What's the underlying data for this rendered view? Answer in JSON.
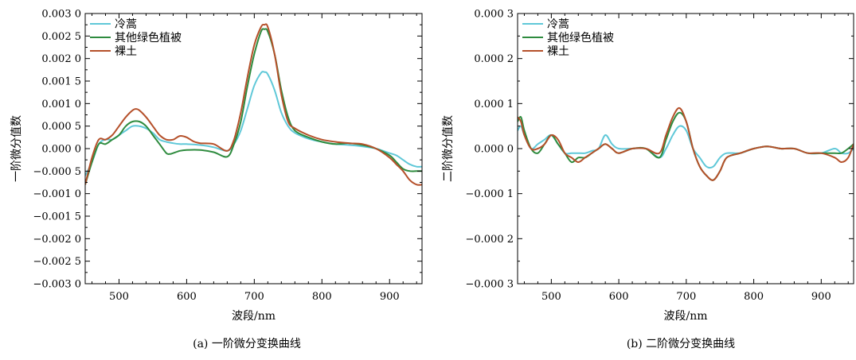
{
  "colors": {
    "cyan": "#5fc8d8",
    "green": "#2e8b3e",
    "red": "#b5502a"
  },
  "chart_data": [
    {
      "type": "line",
      "caption": "(a) 一阶微分变换曲线",
      "xlabel": "波段/nm",
      "ylabel": "一阶微分值数",
      "xlim": [
        450,
        948
      ],
      "ylim": [
        -0.003,
        0.003
      ],
      "xticks": [
        500,
        600,
        700,
        800,
        900
      ],
      "xtick_labels": [
        "500",
        "600",
        "700",
        "800",
        "900"
      ],
      "yticks": [
        -0.003,
        -0.0025,
        -0.002,
        -0.0015,
        -0.001,
        -0.0005,
        0,
        0.0005,
        0.001,
        0.0015,
        0.002,
        0.0025,
        0.003
      ],
      "ytick_labels": [
        "−0.003 0",
        "−0.002 5",
        "−0.002 0",
        "−0.001 5",
        "−0.001 0",
        "−0.000 5",
        "0.000 0",
        "0.000 5",
        "0.001 0",
        "0.001 5",
        "0.002 0",
        "0.002 5",
        "0.003 0"
      ],
      "legend": "top-left",
      "series": [
        {
          "name": "冷蒿",
          "color": "#5fc8d8",
          "x": [
            450,
            460,
            470,
            480,
            490,
            500,
            510,
            520,
            530,
            540,
            550,
            560,
            570,
            580,
            590,
            600,
            620,
            640,
            660,
            670,
            680,
            690,
            700,
            710,
            715,
            720,
            730,
            740,
            750,
            760,
            780,
            800,
            820,
            840,
            860,
            880,
            900,
            910,
            920,
            930,
            940,
            948
          ],
          "y": [
            -0.0006,
            -0.0003,
            0.0001,
            0.0002,
            0.0002,
            0.0003,
            0.0004,
            0.0005,
            0.0005,
            0.00045,
            0.00035,
            0.0002,
            0.00015,
            0.00012,
            0.0001,
            0.0001,
            8e-05,
            3e-05,
            -5e-05,
            0.0001,
            0.0004,
            0.0009,
            0.0014,
            0.00168,
            0.0017,
            0.00165,
            0.0013,
            0.0008,
            0.0005,
            0.00035,
            0.00022,
            0.00015,
            0.0001,
            8e-05,
            5e-05,
            0.0,
            -0.0001,
            -0.00015,
            -0.00025,
            -0.00035,
            -0.0004,
            -0.0004
          ]
        },
        {
          "name": "其他绿色植被",
          "color": "#2e8b3e",
          "x": [
            450,
            460,
            470,
            480,
            490,
            500,
            510,
            520,
            530,
            540,
            550,
            560,
            570,
            575,
            580,
            590,
            600,
            620,
            640,
            660,
            670,
            680,
            690,
            700,
            710,
            715,
            720,
            730,
            740,
            750,
            760,
            780,
            800,
            820,
            840,
            860,
            880,
            900,
            910,
            920,
            930,
            940,
            948
          ],
          "y": [
            -0.0008,
            -0.0003,
            0.0001,
            0.0001,
            0.0002,
            0.0003,
            0.0005,
            0.0006,
            0.0006,
            0.0005,
            0.0003,
            0.0001,
            -0.0001,
            -0.00012,
            -0.0001,
            -5e-05,
            -3e-05,
            -3e-05,
            -8e-05,
            -0.00018,
            0.0001,
            0.0006,
            0.0014,
            0.0021,
            0.0026,
            0.00265,
            0.0026,
            0.0021,
            0.0013,
            0.0007,
            0.0004,
            0.00025,
            0.00015,
            0.0001,
            0.00012,
            8e-05,
            0.0,
            -0.00015,
            -0.0003,
            -0.00045,
            -0.0005,
            -0.0005,
            -0.0005
          ]
        },
        {
          "name": "裸土",
          "color": "#b5502a",
          "x": [
            450,
            460,
            470,
            480,
            490,
            500,
            510,
            520,
            525,
            530,
            540,
            550,
            560,
            570,
            580,
            590,
            600,
            610,
            620,
            640,
            660,
            670,
            680,
            690,
            700,
            710,
            715,
            720,
            730,
            740,
            750,
            760,
            780,
            800,
            820,
            840,
            860,
            880,
            900,
            910,
            920,
            930,
            940,
            948
          ],
          "y": [
            -0.0008,
            -0.0002,
            0.0002,
            0.0002,
            0.0003,
            0.0005,
            0.0007,
            0.00085,
            0.00088,
            0.00085,
            0.0007,
            0.0005,
            0.0003,
            0.0002,
            0.0002,
            0.00028,
            0.00025,
            0.00016,
            0.00012,
            0.0001,
            -5e-05,
            0.0002,
            0.0008,
            0.0016,
            0.0023,
            0.0027,
            0.00275,
            0.0027,
            0.0021,
            0.0012,
            0.0006,
            0.00045,
            0.0003,
            0.0002,
            0.00015,
            0.00012,
            0.0001,
            0.0,
            -0.0002,
            -0.00035,
            -0.0005,
            -0.0007,
            -0.0008,
            -0.0008
          ]
        }
      ]
    },
    {
      "type": "line",
      "caption": "(b) 二阶微分变换曲线",
      "xlabel": "波段/nm",
      "ylabel": "二阶微分值数",
      "xlim": [
        450,
        948
      ],
      "ylim": [
        -0.0003,
        0.0003
      ],
      "xticks": [
        500,
        600,
        700,
        800,
        900
      ],
      "xtick_labels": [
        "500",
        "600",
        "700",
        "800",
        "900"
      ],
      "yticks": [
        -0.0003,
        -0.0002,
        -0.0001,
        0,
        0.0001,
        0.0002,
        0.0003
      ],
      "ytick_labels": [
        "−0.000 3",
        "−0.000 2",
        "−0.000 1",
        "0.000 0",
        "0.000 1",
        "0.000 2",
        "0.000 3"
      ],
      "legend": "top-left",
      "series": [
        {
          "name": "冷蒿",
          "color": "#5fc8d8",
          "x": [
            450,
            455,
            460,
            470,
            480,
            490,
            500,
            510,
            520,
            530,
            540,
            550,
            560,
            570,
            580,
            590,
            600,
            620,
            640,
            660,
            670,
            680,
            690,
            700,
            710,
            720,
            730,
            740,
            750,
            760,
            780,
            800,
            820,
            840,
            860,
            880,
            900,
            920,
            930,
            940,
            948
          ],
          "y": [
            4e-05,
            5e-05,
            3e-05,
            0.0,
            1e-05,
            2e-05,
            3e-05,
            1e-05,
            -1e-05,
            -1e-05,
            -1e-05,
            -1e-05,
            -5e-06,
            0.0,
            3e-05,
            1e-05,
            0.0,
            0.0,
            0.0,
            -2e-05,
            0.0,
            3e-05,
            5e-05,
            4e-05,
            0.0,
            -2e-05,
            -4e-05,
            -4e-05,
            -2e-05,
            -1e-05,
            -1e-05,
            0.0,
            5e-06,
            0.0,
            0.0,
            -1e-05,
            -1e-05,
            0.0,
            -1e-05,
            -1e-05,
            0.0
          ]
        },
        {
          "name": "其他绿色植被",
          "color": "#2e8b3e",
          "x": [
            450,
            455,
            460,
            470,
            480,
            490,
            500,
            510,
            520,
            530,
            540,
            550,
            560,
            570,
            580,
            590,
            600,
            620,
            640,
            660,
            670,
            680,
            690,
            700,
            710,
            720,
            730,
            740,
            750,
            760,
            780,
            800,
            820,
            840,
            860,
            880,
            900,
            920,
            930,
            940,
            948
          ],
          "y": [
            6e-05,
            7e-05,
            4e-05,
            0.0,
            -1e-05,
            1e-05,
            3e-05,
            1e-05,
            -1e-05,
            -3e-05,
            -2e-05,
            -2e-05,
            -1e-05,
            0.0,
            1e-05,
            0.0,
            -1e-05,
            0.0,
            0.0,
            -2e-05,
            2e-05,
            6e-05,
            8e-05,
            6e-05,
            0.0,
            -4e-05,
            -6e-05,
            -7e-05,
            -5e-05,
            -2e-05,
            -1e-05,
            0.0,
            5e-06,
            0.0,
            0.0,
            -1e-05,
            -1e-05,
            -1e-05,
            -1e-05,
            0.0,
            1e-05
          ]
        },
        {
          "name": "裸土",
          "color": "#b5502a",
          "x": [
            450,
            455,
            460,
            470,
            480,
            490,
            500,
            510,
            520,
            530,
            540,
            550,
            560,
            570,
            580,
            590,
            600,
            620,
            640,
            660,
            670,
            680,
            690,
            700,
            710,
            720,
            730,
            740,
            750,
            760,
            780,
            800,
            820,
            840,
            860,
            880,
            900,
            920,
            930,
            940,
            948
          ],
          "y": [
            7e-05,
            6e-05,
            3e-05,
            0.0,
            0.0,
            1e-05,
            3e-05,
            2e-05,
            -1e-05,
            -2e-05,
            -3e-05,
            -2e-05,
            -1e-05,
            0.0,
            1e-05,
            0.0,
            -1e-05,
            0.0,
            0.0,
            -1e-05,
            3e-05,
            7e-05,
            9e-05,
            6e-05,
            0.0,
            -4e-05,
            -6e-05,
            -7e-05,
            -5e-05,
            -2e-05,
            -1e-05,
            0.0,
            5e-06,
            0.0,
            0.0,
            -1e-05,
            -1e-05,
            -2e-05,
            -3e-05,
            -2e-05,
            1e-05
          ]
        }
      ]
    }
  ]
}
